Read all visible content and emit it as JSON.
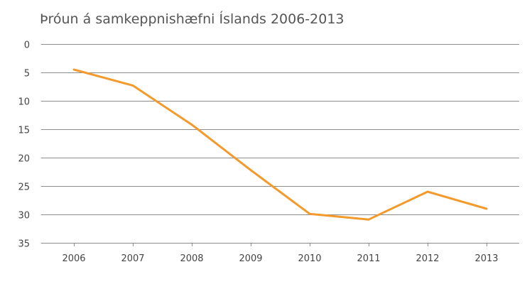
{
  "chart_data": {
    "type": "line",
    "title": "Þróun á samkeppnishæfni Íslands 2006-2013",
    "xlabel": "",
    "ylabel": "",
    "x": [
      "2006",
      "2007",
      "2008",
      "2009",
      "2010",
      "2011",
      "2012",
      "2013"
    ],
    "yticks": [
      "0",
      "5",
      "10",
      "15",
      "20",
      "25",
      "30",
      "35"
    ],
    "ylim": [
      0,
      35
    ],
    "y_inverted": true,
    "grid": true,
    "legend": "none",
    "series": [
      {
        "values": [
          4.5,
          7.3,
          14.2,
          22.2,
          29.9,
          30.9,
          26,
          29
        ],
        "color": "#f39a2b"
      }
    ]
  }
}
